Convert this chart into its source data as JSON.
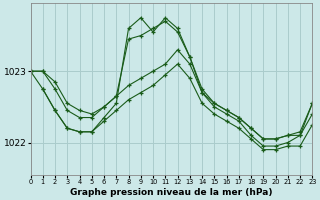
{
  "xlabel": "Graphe pression niveau de la mer (hPa)",
  "background_color": "#cce8e8",
  "grid_color": "#aacccc",
  "line_color": "#1a5c1a",
  "yticks": [
    1022,
    1023
  ],
  "ylim": [
    1021.55,
    1023.95
  ],
  "xlim": [
    0,
    23
  ],
  "series": [
    {
      "x": [
        0,
        1,
        2,
        3,
        4,
        5,
        6,
        7,
        8,
        9,
        10,
        11,
        12,
        13,
        14,
        15,
        16,
        17,
        18,
        19,
        20,
        21,
        22,
        23
      ],
      "y": [
        1023.0,
        1023.0,
        1022.75,
        1022.45,
        1022.35,
        1022.35,
        1022.5,
        1022.65,
        1022.8,
        1022.9,
        1023.0,
        1023.1,
        1023.3,
        1023.1,
        1022.7,
        1022.55,
        1022.45,
        1022.35,
        1022.2,
        1022.05,
        1022.05,
        1022.1,
        1022.1,
        1022.4
      ]
    },
    {
      "x": [
        0,
        1,
        2,
        3,
        4,
        5,
        6,
        7,
        8,
        9,
        10,
        11,
        12,
        13,
        14,
        15,
        16,
        17,
        18,
        19,
        20,
        21,
        22,
        23
      ],
      "y": [
        1023.0,
        1022.75,
        1022.45,
        1022.2,
        1022.15,
        1022.15,
        1022.3,
        1022.45,
        1022.6,
        1022.7,
        1022.8,
        1022.95,
        1023.1,
        1022.9,
        1022.55,
        1022.4,
        1022.3,
        1022.2,
        1022.05,
        1021.9,
        1021.9,
        1021.95,
        1021.95,
        1022.25
      ]
    },
    {
      "x": [
        1,
        2,
        3,
        4,
        5,
        6,
        7,
        8,
        9,
        10,
        11,
        12,
        13,
        14,
        15,
        16,
        17,
        18,
        19,
        20,
        21,
        22,
        23
      ],
      "y": [
        1022.75,
        1022.45,
        1022.2,
        1022.15,
        1022.15,
        1022.35,
        1022.55,
        1023.6,
        1023.75,
        1023.55,
        1023.75,
        1023.6,
        1023.2,
        1022.7,
        1022.5,
        1022.4,
        1022.3,
        1022.1,
        1021.95,
        1021.95,
        1022.0,
        1022.1,
        1022.55
      ]
    },
    {
      "x": [
        0,
        1,
        2,
        3,
        4,
        5,
        6,
        7,
        8,
        9,
        10,
        11,
        12,
        13,
        14,
        15,
        16,
        17,
        18,
        19,
        20,
        21,
        22,
        23
      ],
      "y": [
        1023.0,
        1023.0,
        1022.85,
        1022.55,
        1022.45,
        1022.4,
        1022.5,
        1022.65,
        1023.45,
        1023.5,
        1023.6,
        1023.7,
        1023.55,
        1023.2,
        1022.75,
        1022.55,
        1022.45,
        1022.35,
        1022.2,
        1022.05,
        1022.05,
        1022.1,
        1022.15,
        1022.55
      ]
    }
  ]
}
